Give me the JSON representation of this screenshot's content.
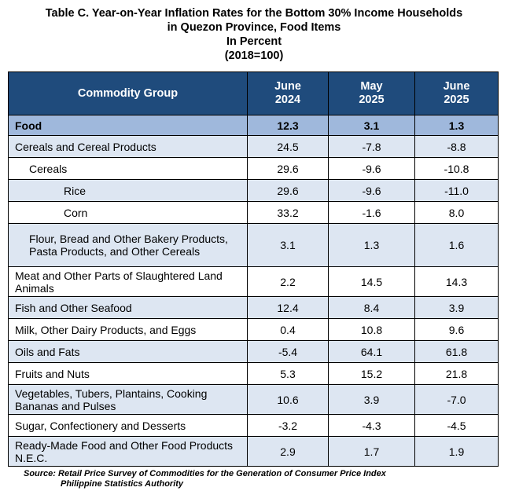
{
  "title": {
    "line1": "Table C. Year-on-Year Inflation Rates for the Bottom 30% Income Households",
    "line2": "in Quezon Province, Food Items",
    "line3": "In Percent",
    "line4": "(2018=100)"
  },
  "header": {
    "col0": "Commodity Group",
    "col1a": "June",
    "col1b": "2024",
    "col2a": "May",
    "col2b": "2025",
    "col3a": "June",
    "col3b": "2025"
  },
  "rows": [
    {
      "label": "Food",
      "v1": "12.3",
      "v2": "3.1",
      "v3": "1.3"
    },
    {
      "label": "Cereals and Cereal Products",
      "v1": "24.5",
      "v2": "-7.8",
      "v3": "-8.8"
    },
    {
      "label": "Cereals",
      "v1": "29.6",
      "v2": "-9.6",
      "v3": "-10.8"
    },
    {
      "label": "Rice",
      "v1": "29.6",
      "v2": "-9.6",
      "v3": "-11.0"
    },
    {
      "label": "Corn",
      "v1": "33.2",
      "v2": "-1.6",
      "v3": "8.0"
    },
    {
      "label": "Flour, Bread and Other Bakery Products, Pasta Products, and Other Cereals",
      "v1": "3.1",
      "v2": "1.3",
      "v3": "1.6"
    },
    {
      "label": "Meat and Other Parts of Slaughtered Land Animals",
      "v1": "2.2",
      "v2": "14.5",
      "v3": "14.3"
    },
    {
      "label": "Fish and Other Seafood",
      "v1": "12.4",
      "v2": "8.4",
      "v3": "3.9"
    },
    {
      "label": "Milk, Other Dairy Products, and Eggs",
      "v1": "0.4",
      "v2": "10.8",
      "v3": "9.6"
    },
    {
      "label": "Oils and Fats",
      "v1": "-5.4",
      "v2": "64.1",
      "v3": "61.8"
    },
    {
      "label": "Fruits and Nuts",
      "v1": "5.3",
      "v2": "15.2",
      "v3": "21.8"
    },
    {
      "label": "Vegetables, Tubers, Plantains, Cooking Bananas and Pulses",
      "v1": "10.6",
      "v2": "3.9",
      "v3": "-7.0"
    },
    {
      "label": "Sugar, Confectionery and Desserts",
      "v1": "-3.2",
      "v2": "-4.3",
      "v3": "-4.5"
    },
    {
      "label": "Ready-Made Food and Other Food Products N.E.C.",
      "v1": "2.9",
      "v2": "1.7",
      "v3": "1.9"
    }
  ],
  "source": {
    "line1": "Source: Retail Price Survey of Commodities for the Generation of Consumer Price Index",
    "line2": "Philippine Statistics Authority"
  },
  "colors": {
    "header_bg": "#1f4b7c",
    "food_bg": "#9fb8dc",
    "shade_bg": "#dde6f2"
  }
}
